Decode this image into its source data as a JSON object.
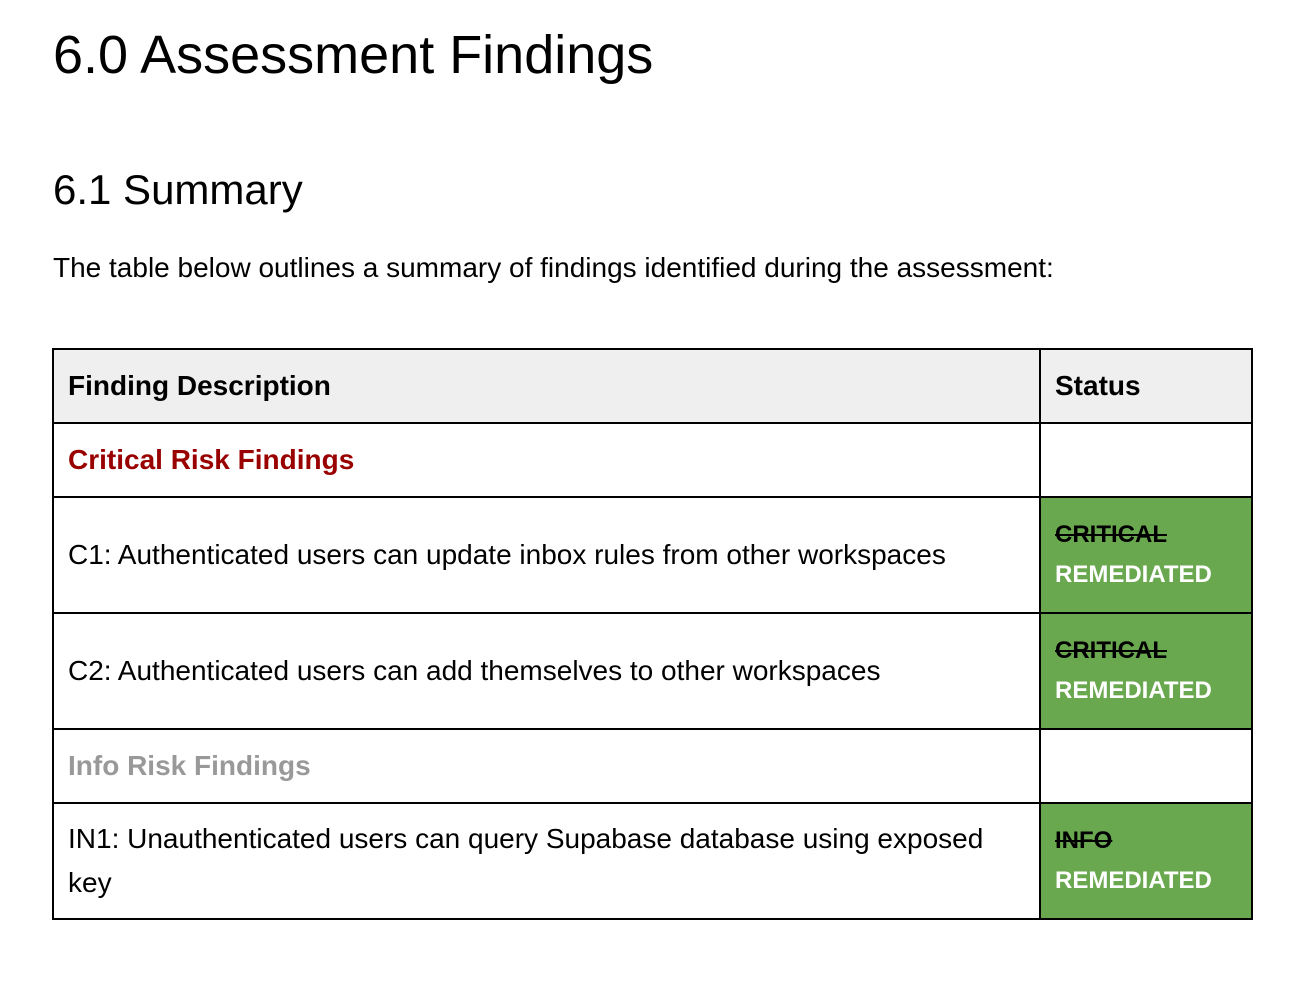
{
  "title": "6.0 Assessment Findings",
  "subtitle": "6.1 Summary",
  "intro": "The table below outlines a summary of findings identified during the assessment:",
  "table": {
    "headers": [
      "Finding Description",
      "Status"
    ],
    "critical_heading": "Critical Risk Findings",
    "info_heading": "Info Risk Findings",
    "rows": [
      {
        "desc": "C1: Authenticated users can update inbox rules from other workspaces",
        "old": "CRITICAL",
        "status": "REMEDIATED"
      },
      {
        "desc": "C2: Authenticated users can add themselves to other workspaces",
        "old": "CRITICAL",
        "status": "REMEDIATED"
      },
      {
        "desc": "IN1: Unauthenticated users can query Supabase database using exposed key",
        "old": "INFO",
        "status": "REMEDIATED"
      }
    ]
  },
  "colors": {
    "critical": "#990000",
    "info": "#999999",
    "remediated_bg": "#6aa84f",
    "header_bg": "#efefef"
  }
}
